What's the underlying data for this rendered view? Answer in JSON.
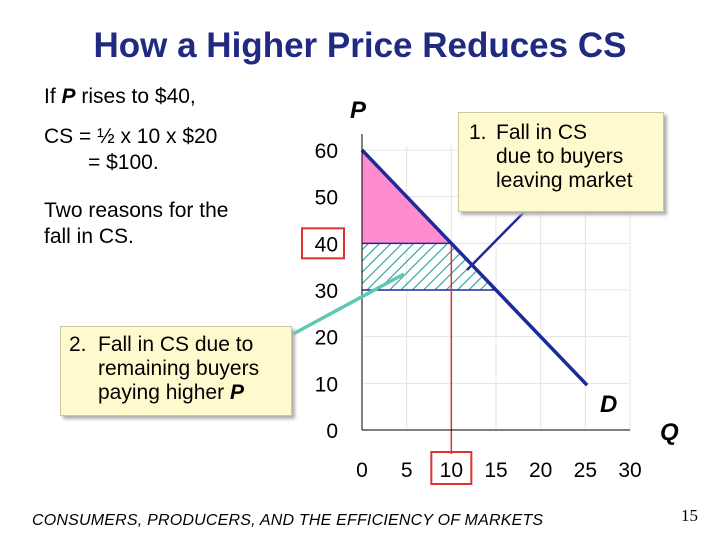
{
  "slide": {
    "title": "How a Higher Price Reduces CS",
    "left_text": {
      "line1_prefix": "If ",
      "line1_var": "P",
      "line1_suffix": " rises to $40,",
      "cs_line1": "CS = ½ x 10 x $20",
      "cs_line2": "= $100.",
      "reasons_line1": "Two reasons for the",
      "reasons_line2": "fall in CS."
    },
    "callout1": {
      "number": "1.",
      "line1": "Fall in CS",
      "line2": "due to buyers",
      "line3": "leaving market"
    },
    "callout2": {
      "number": "2.",
      "line1": "Fall in CS due to",
      "line2": "remaining buyers",
      "line3_prefix": "paying higher ",
      "line3_var": "P"
    },
    "footer": "CONSUMERS, PRODUCERS, AND THE EFFICIENCY OF MARKETS",
    "page_number": "15"
  },
  "chart_data": {
    "type": "line",
    "ylabel": "P",
    "xlabel": "Q",
    "demand_label": "D",
    "x_ticks": [
      0,
      5,
      10,
      15,
      20,
      25,
      30
    ],
    "y_ticks": [
      0,
      10,
      20,
      30,
      40,
      50,
      60
    ],
    "xlim": [
      0,
      30
    ],
    "ylim": [
      0,
      60
    ],
    "demand": [
      [
        0,
        60
      ],
      [
        30,
        0
      ]
    ],
    "new_price": 40,
    "new_quantity": 10,
    "old_price": 30,
    "old_quantity": 15,
    "highlighted_price": "40",
    "highlighted_quantity": "10",
    "colors": {
      "demand": "#1f2a9a",
      "cs_area": "#ff8ccf",
      "lost_area_hatch": "#2a9b9b",
      "highlight": "#e03030",
      "guide": "#1f2a9a"
    }
  }
}
